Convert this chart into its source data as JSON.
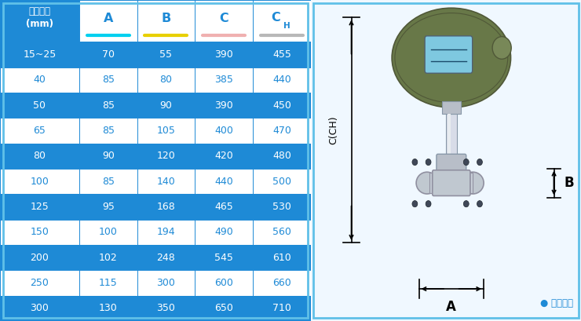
{
  "header_col0": "仪表口径\n(mm)",
  "header_cols": [
    "A",
    "B",
    "C",
    "CH"
  ],
  "col_underline_colors": [
    "#00d0f0",
    "#e8d000",
    "#f0b0b0",
    "#b8b8b8"
  ],
  "rows": [
    [
      "15~25",
      "70",
      "55",
      "390",
      "455"
    ],
    [
      "40",
      "85",
      "80",
      "385",
      "440"
    ],
    [
      "50",
      "85",
      "90",
      "390",
      "450"
    ],
    [
      "65",
      "85",
      "105",
      "400",
      "470"
    ],
    [
      "80",
      "90",
      "120",
      "420",
      "480"
    ],
    [
      "100",
      "85",
      "140",
      "440",
      "500"
    ],
    [
      "125",
      "95",
      "168",
      "465",
      "530"
    ],
    [
      "150",
      "100",
      "194",
      "490",
      "560"
    ],
    [
      "200",
      "102",
      "248",
      "545",
      "610"
    ],
    [
      "250",
      "115",
      "300",
      "600",
      "660"
    ],
    [
      "300",
      "130",
      "350",
      "650",
      "710"
    ]
  ],
  "blue": "#1e8ad6",
  "white": "#ffffff",
  "light_bg": "#f0f8ff",
  "border_outer": "#60c0e8",
  "text_white": "#ffffff",
  "text_blue": "#1e8ad6",
  "legend_text": "● 常规仪表",
  "legend_color": "#1e8ad6",
  "label_CCH": "C(CH)",
  "label_A": "A",
  "label_B": "B",
  "fig_width": 7.4,
  "fig_height": 4.09
}
